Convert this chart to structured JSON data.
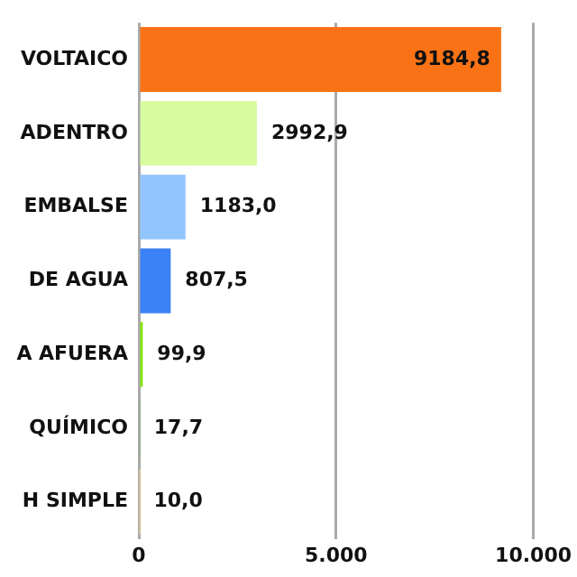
{
  "chart_data": {
    "type": "bar",
    "orientation": "horizontal",
    "categories": [
      "VOLTAICO",
      "ADENTRO",
      "EMBALSE",
      "DE AGUA",
      "A AFUERA",
      "QUÍMICO",
      "H SIMPLE"
    ],
    "values": [
      9184.8,
      2992.9,
      1183.0,
      807.5,
      99.9,
      17.7,
      10.0
    ],
    "colors": [
      "#f97316",
      "#d8fca0",
      "#93c5fd",
      "#3b82f6",
      "#84e80f",
      "#8aab7a",
      "#f0d090"
    ],
    "value_labels": [
      "9184,8",
      "2992,9",
      "1183,0",
      "807,5",
      "99,9",
      "17,7",
      "10,0"
    ],
    "xlim": [
      0,
      10000
    ],
    "xticks": [
      0,
      {
        "value": 5000,
        "label": "5.000"
      },
      {
        "value": 10000,
        "label": "10.000"
      }
    ],
    "grid": "x",
    "legend": false
  }
}
